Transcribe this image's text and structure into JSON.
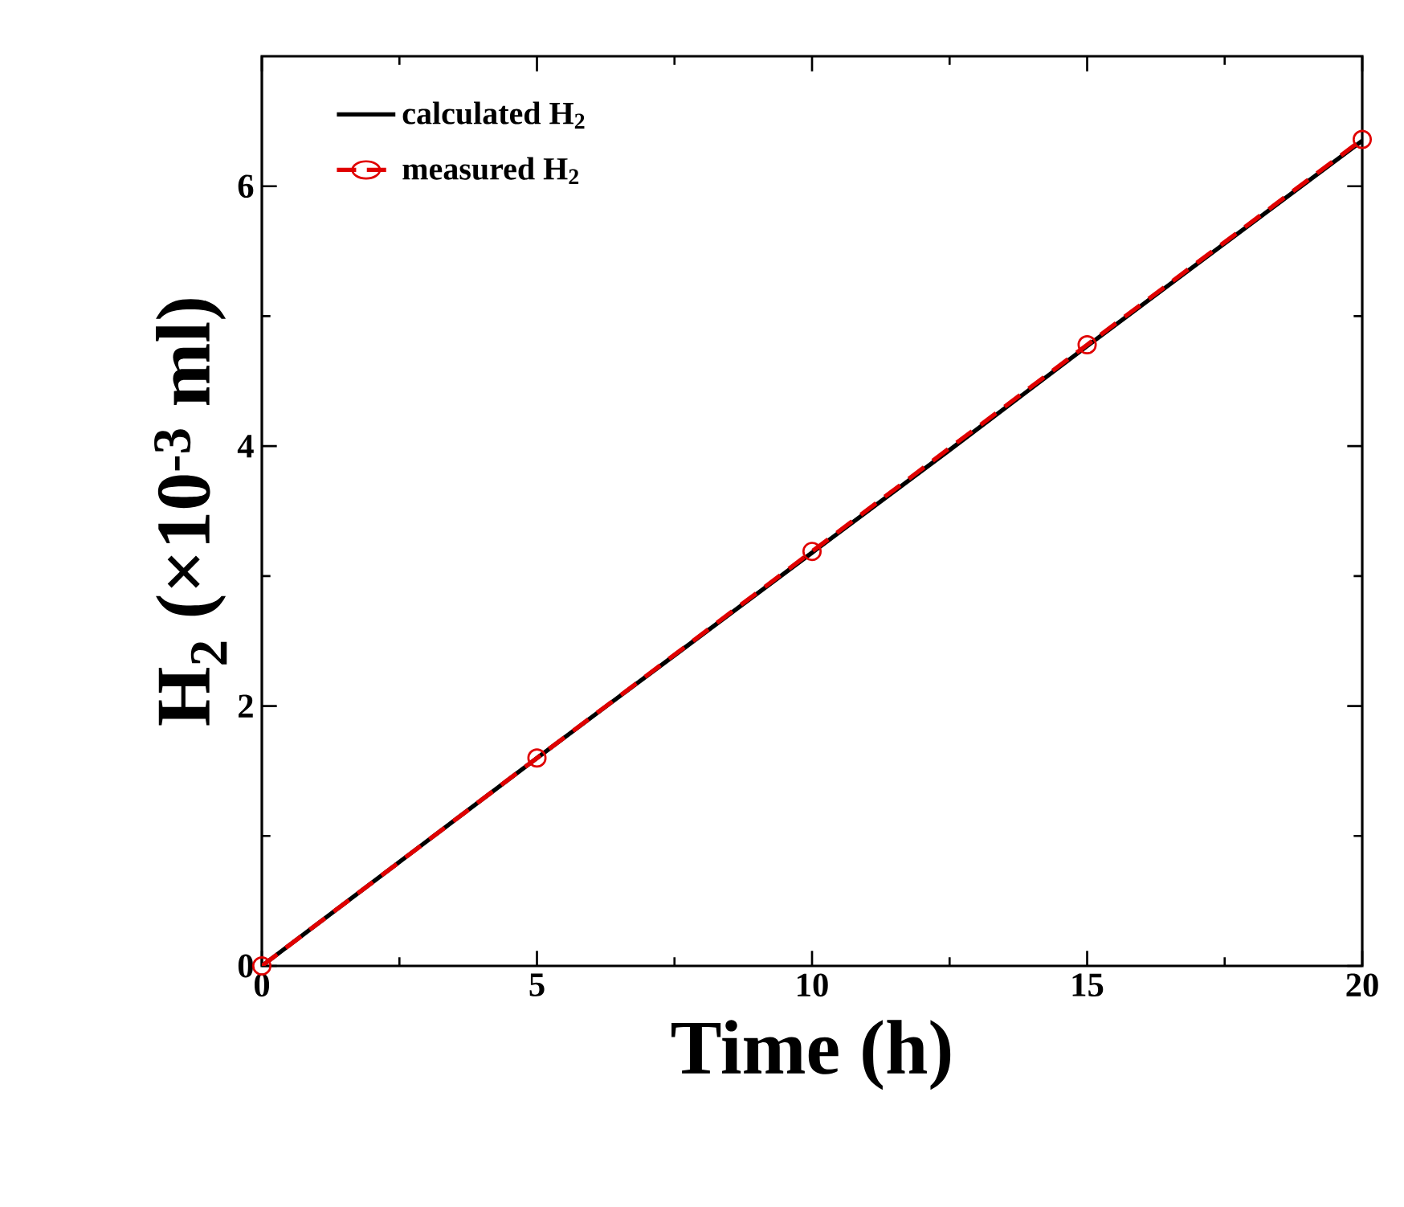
{
  "chart_data": {
    "type": "line",
    "xlabel": "Time (h)",
    "ylabel": "H$_{2}$ (×10$^{-3}$ ml)",
    "xlim": [
      0,
      20
    ],
    "ylim": [
      0,
      7
    ],
    "xticks": [
      0,
      5,
      10,
      15,
      20
    ],
    "yticks": [
      0,
      2,
      4,
      6
    ],
    "legend": "top left",
    "series": [
      {
        "name": "calculated H$_{2}$",
        "color": "#000000",
        "line_style": "solid",
        "marker": "none",
        "x": [
          0,
          2.5,
          5,
          7.5,
          10,
          12.5,
          15,
          17.5,
          20
        ],
        "values": [
          0,
          0.8,
          1.6,
          2.39,
          3.18,
          3.97,
          4.77,
          5.56,
          6.35
        ]
      },
      {
        "name": "measured H$_{2}$",
        "color": "#e00000",
        "line_style": "dashed",
        "marker": "circle",
        "x": [
          0,
          5,
          10,
          15,
          20
        ],
        "values": [
          0,
          1.6,
          3.19,
          4.78,
          6.36
        ]
      }
    ]
  }
}
